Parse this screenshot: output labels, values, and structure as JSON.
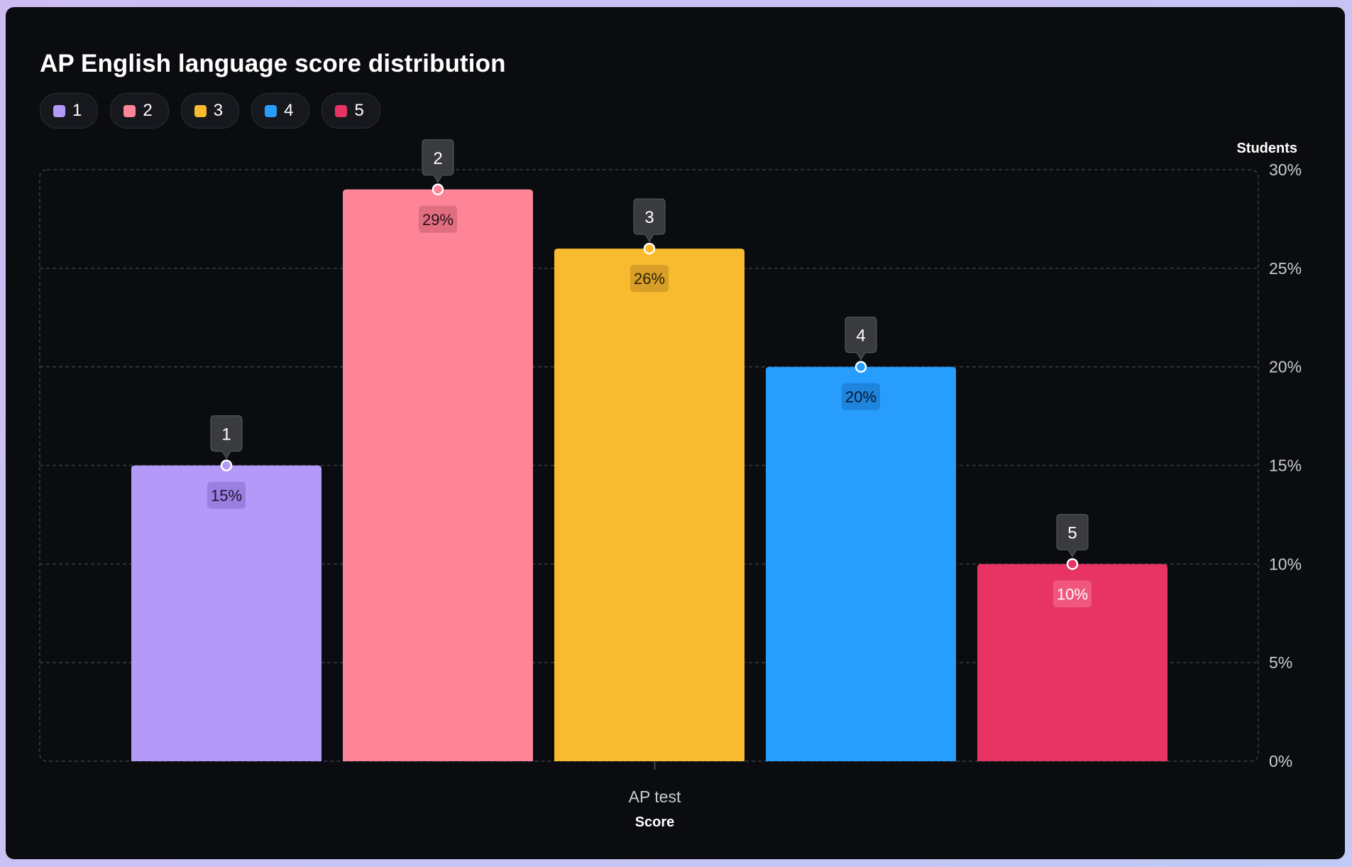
{
  "chart_data": {
    "type": "bar",
    "title": "AP English language score distribution",
    "categories": [
      "AP test"
    ],
    "series": [
      {
        "name": "1",
        "values": [
          15
        ],
        "color": "#b399f8",
        "label": "15%",
        "label_bg": "#9a7fe0",
        "label_color": "#1c1530"
      },
      {
        "name": "2",
        "values": [
          29
        ],
        "color": "#fd8597",
        "label": "29%",
        "label_bg": "#df6e81",
        "label_color": "#2a0f16"
      },
      {
        "name": "3",
        "values": [
          26
        ],
        "color": "#f8bb2f",
        "label": "26%",
        "label_bg": "#d89e27",
        "label_color": "#2a1e05"
      },
      {
        "name": "4",
        "values": [
          20
        ],
        "color": "#279dfd",
        "label": "20%",
        "label_bg": "#1e84dc",
        "label_color": "#06192c"
      },
      {
        "name": "5",
        "values": [
          10
        ],
        "color": "#e83464",
        "label": "10%",
        "label_bg": "#f0567e",
        "label_color": "#ffffff"
      }
    ],
    "xlabel": "Score",
    "ylabel": "Students",
    "ylim": [
      0,
      30
    ],
    "yticks": [
      "0%",
      "5%",
      "10%",
      "15%",
      "20%",
      "25%",
      "30%"
    ],
    "grid": true,
    "legend_position": "top-left"
  }
}
